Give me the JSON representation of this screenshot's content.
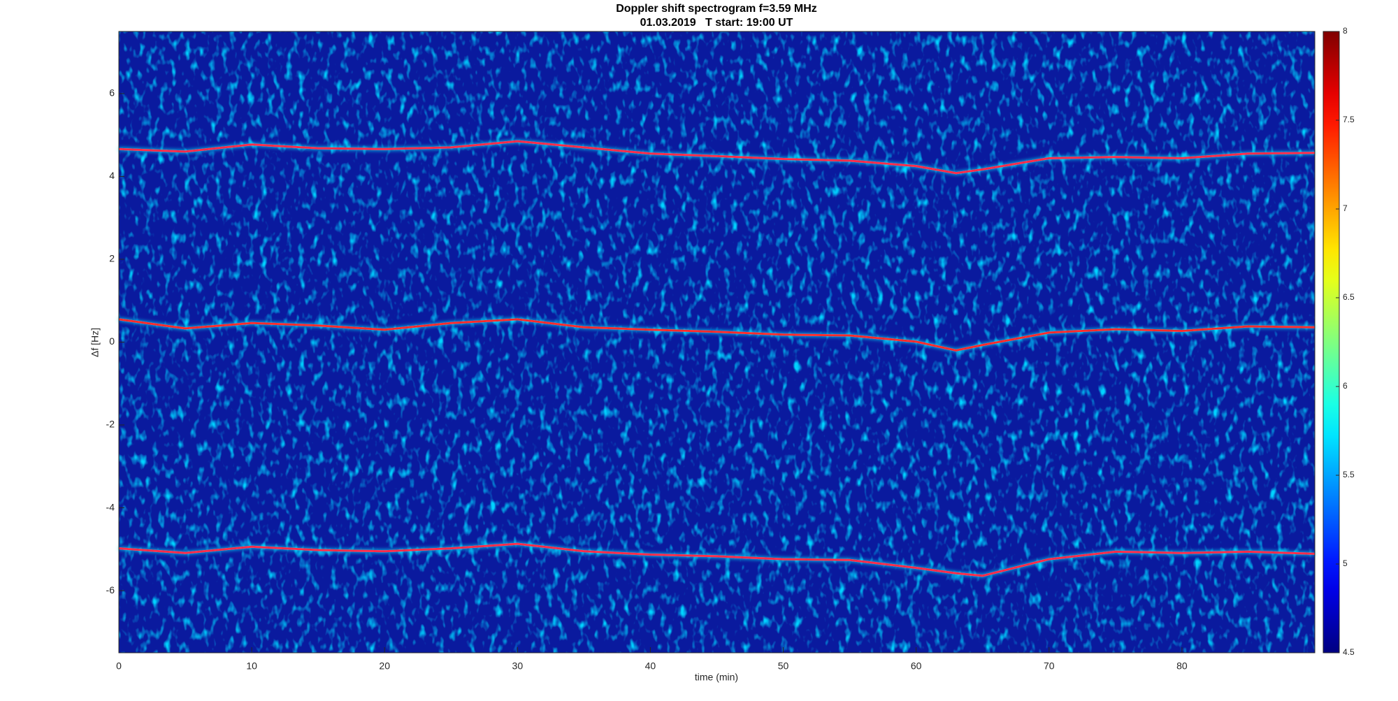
{
  "chart_data": {
    "type": "spectrogram",
    "title": "Doppler shift spectrogram f=3.59 MHz",
    "subtitle": "01.03.2019   T start: 19:00 UT",
    "xlabel": "time (min)",
    "ylabel": "Δf [Hz]",
    "xlim": [
      0,
      90
    ],
    "xticks": [
      0,
      10,
      20,
      30,
      40,
      50,
      60,
      70,
      80
    ],
    "ylim": [
      -7.5,
      7.5
    ],
    "yticks": [
      -6,
      -4,
      -2,
      0,
      2,
      4,
      6
    ],
    "background": "#0a1a9e",
    "colormap": "jet",
    "clim": [
      4.5,
      8
    ],
    "cticks": [
      4.5,
      5,
      5.5,
      6,
      6.5,
      7,
      7.5,
      8
    ],
    "x": [
      0,
      5,
      10,
      15,
      20,
      25,
      30,
      35,
      40,
      45,
      50,
      55,
      60,
      63,
      65,
      70,
      75,
      80,
      85,
      90
    ],
    "series": [
      {
        "color": "#ff2a4a",
        "values": [
          4.66,
          4.6,
          4.77,
          4.68,
          4.66,
          4.7,
          4.85,
          4.7,
          4.55,
          4.49,
          4.42,
          4.38,
          4.25,
          4.08,
          4.17,
          4.44,
          4.47,
          4.44,
          4.55,
          4.57
        ]
      },
      {
        "color": "#ff2a2a",
        "values": [
          0.55,
          0.33,
          0.46,
          0.4,
          0.3,
          0.46,
          0.55,
          0.36,
          0.3,
          0.25,
          0.18,
          0.16,
          0.01,
          -0.2,
          -0.07,
          0.23,
          0.31,
          0.27,
          0.38,
          0.36
        ]
      },
      {
        "color": "#ff2a4a",
        "values": [
          -4.98,
          -5.09,
          -4.94,
          -5.02,
          -5.05,
          -4.98,
          -4.87,
          -5.05,
          -5.13,
          -5.17,
          -5.24,
          -5.26,
          -5.45,
          -5.58,
          -5.64,
          -5.24,
          -5.06,
          -5.09,
          -5.06,
          -5.11
        ]
      }
    ]
  }
}
